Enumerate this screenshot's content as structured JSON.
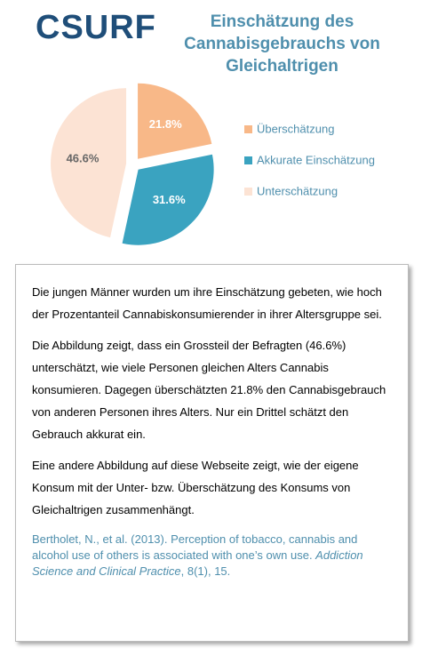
{
  "logo": "CSURF",
  "chart_data": {
    "type": "pie",
    "title": "Einschätzung des Cannabisgebrauchs von Gleichaltrigen",
    "categories": [
      "Überschätzung",
      "Akkurate Einschätzung",
      "Unterschätzung"
    ],
    "values": [
      21.8,
      31.6,
      46.6
    ],
    "value_labels": [
      "21.8%",
      "31.6%",
      "46.6%"
    ],
    "colors": [
      "#f8b888",
      "#3aa3c0",
      "#fce3d4"
    ],
    "label_colors": [
      "#ffffff",
      "#ffffff",
      "#666666"
    ],
    "legend": "right"
  },
  "text": {
    "paragraphs": [
      "Die jungen Männer wurden um ihre Einschätzung gebeten, wie hoch der Prozentanteil Cannabiskonsumierender in ihrer Altersgruppe sei.",
      "Die Abbildung zeigt, dass ein Grossteil der Befragten (46.6%) unterschätzt, wie viele Personen gleichen Alters  Cannabis konsumieren. Dagegen überschätzten 21.8% den Cannabisgebrauch von anderen Personen ihres Alters. Nur ein Drittel schätzt den Gebrauch akkurat ein.",
      "Eine andere Abbildung auf diese Webseite zeigt, wie der eigene Konsum mit der Unter- bzw. Überschätzung des Konsums von Gleichaltrigen zusammenhängt."
    ],
    "citation": {
      "reference": "Bertholet, N., et al. (2013).  Perception of tobacco, cannabis and alcohol use of others is associated with one’s own use. ",
      "journal": "Addiction Science and Clinical Practice",
      "details": ", 8(1), 15."
    }
  }
}
